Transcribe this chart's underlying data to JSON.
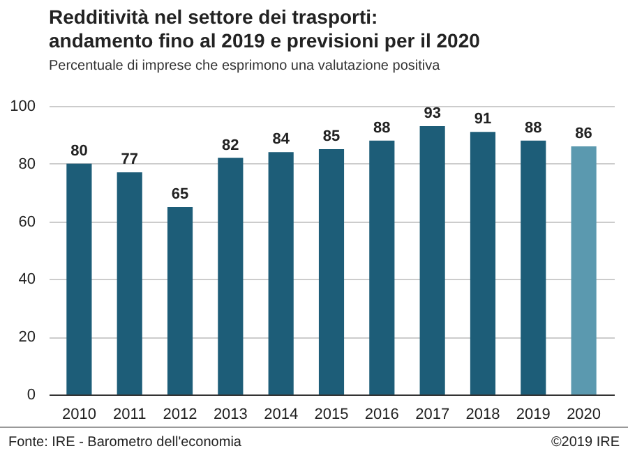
{
  "chart_data": {
    "type": "bar",
    "title": "Redditività nel settore dei trasporti:\nandamento fino al 2019 e previsioni per il 2020",
    "subtitle": "Percentuale di imprese che esprimono una valutazione positiva",
    "categories": [
      "2010",
      "2011",
      "2012",
      "2013",
      "2014",
      "2015",
      "2016",
      "2017",
      "2018",
      "2019",
      "2020"
    ],
    "values": [
      80,
      77,
      65,
      82,
      84,
      85,
      88,
      93,
      91,
      88,
      86
    ],
    "colors": [
      "#1d5d78",
      "#1d5d78",
      "#1d5d78",
      "#1d5d78",
      "#1d5d78",
      "#1d5d78",
      "#1d5d78",
      "#1d5d78",
      "#1d5d78",
      "#1d5d78",
      "#5b99af"
    ],
    "ylim": [
      0,
      100
    ],
    "yticks": [
      0,
      20,
      40,
      60,
      80,
      100
    ],
    "grid": "y",
    "data_labels": true,
    "annotations": [
      "Fonte: IRE - Barometro dell'economia",
      "©2019 IRE"
    ]
  }
}
